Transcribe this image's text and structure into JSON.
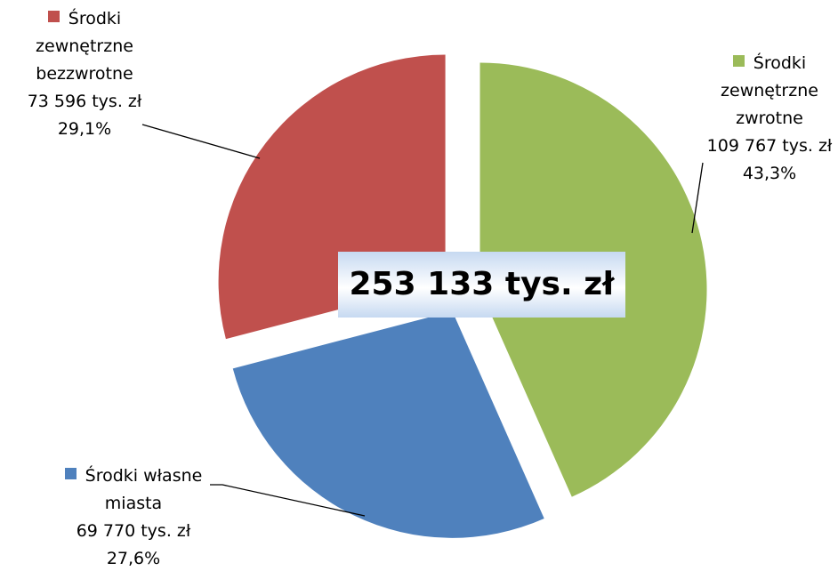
{
  "chart_data": {
    "type": "pie",
    "center_label": "253 133 tys. zł",
    "categories": [
      "Środki zewnętrzne zwrotne",
      "Środki własne miasta",
      "Środki zewnętrzne bezzwrotne"
    ],
    "values": [
      109767,
      69770,
      73596
    ],
    "value_labels": [
      "109 767 tys. zł",
      "69 770 tys. zł",
      "73 596 tys. zł"
    ],
    "percent_labels": [
      "43,3%",
      "27,6%",
      "29,1%"
    ],
    "colors": [
      "#9bbb59",
      "#4f81bd",
      "#c0504d"
    ]
  }
}
